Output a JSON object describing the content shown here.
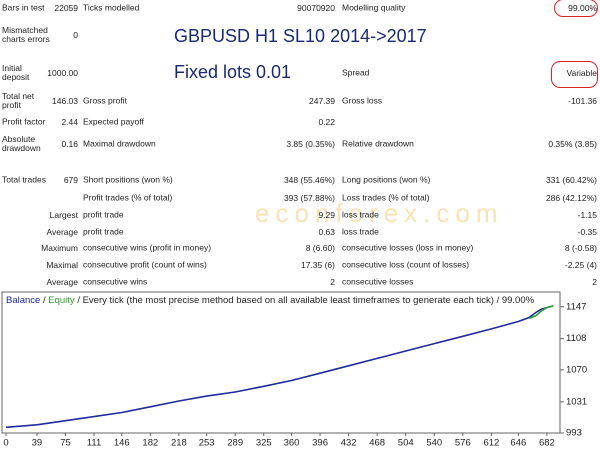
{
  "report": {
    "title": "GBPUSD H1 SL10 2014->2017",
    "subtitle": "Fixed lots 0.01",
    "watermark": "econforex.com",
    "rows": [
      [
        {
          "label": "Bars in test",
          "value": "22059"
        },
        {
          "label": "Ticks modelled",
          "value": "90070920"
        },
        {
          "label": "Modelling quality",
          "value": "99.00%"
        }
      ],
      [
        {
          "label": "Mismatched charts errors",
          "value": "0"
        },
        null,
        null
      ],
      [
        {
          "label": "Initial deposit",
          "value": "1000.00"
        },
        null,
        {
          "label": "Spread",
          "value": "Variable"
        }
      ],
      [
        {
          "label": "Total net profit",
          "value": "146.03"
        },
        {
          "label": "Gross profit",
          "value": "247.39"
        },
        {
          "label": "Gross loss",
          "value": "-101.36"
        }
      ],
      [
        {
          "label": "Profit factor",
          "value": "2.44"
        },
        {
          "label": "Expected payoff",
          "value": "0.22"
        },
        null
      ],
      [
        {
          "label": "Absolute drawdown",
          "value": "0.16"
        },
        {
          "label": "Maximal drawdown",
          "value": "3.85 (0.35%)"
        },
        {
          "label": "Relative drawdown",
          "value": "0.35% (3.85)"
        }
      ],
      [
        {
          "label": "Total trades",
          "value": "679"
        },
        {
          "label": "Short positions (won %)",
          "value": "348 (55.46%)"
        },
        {
          "label": "Long positions (won %)",
          "value": "331 (60.42%)"
        }
      ],
      [
        null,
        {
          "label": "Profit trades (% of total)",
          "value": "393 (57.88%)"
        },
        {
          "label": "Loss trades (% of total)",
          "value": "286 (42.12%)"
        }
      ],
      [
        {
          "label": "Largest"
        },
        {
          "label": "profit trade",
          "value": "9.29"
        },
        {
          "label": "loss trade",
          "value": "-1.15"
        }
      ],
      [
        {
          "label": "Average"
        },
        {
          "label": "profit trade",
          "value": "0.63"
        },
        {
          "label": "loss trade",
          "value": "-0.35"
        }
      ],
      [
        {
          "label": "Maximum"
        },
        {
          "label": "consecutive wins (profit in money)",
          "value": "8 (6.60)"
        },
        {
          "label": "consecutive losses (loss in money)",
          "value": "8 (-0.58)"
        }
      ],
      [
        {
          "label": "Maximal"
        },
        {
          "label": "consecutive profit (count of wins)",
          "value": "17.35 (6)"
        },
        {
          "label": "consecutive loss (count of losses)",
          "value": "-2.25 (4)"
        }
      ],
      [
        {
          "label": "Average"
        },
        {
          "label": "consecutive wins",
          "value": "2"
        },
        {
          "label": "consecutive losses",
          "value": "2"
        }
      ]
    ]
  },
  "chart_data": {
    "type": "line",
    "legend_separator": "/",
    "subtitle": "/ Every tick (the most precise method based on all available least timeframes to generate each tick) / 99.00%",
    "x": [
      0,
      39,
      75,
      111,
      146,
      182,
      218,
      253,
      289,
      325,
      360,
      396,
      432,
      468,
      504,
      540,
      576,
      612,
      646,
      660,
      668,
      675,
      682,
      690
    ],
    "series": [
      {
        "name": "Balance",
        "color": "#1f2a9c",
        "values": [
          1000,
          1003,
          1008,
          1013,
          1018,
          1025,
          1032,
          1038,
          1043,
          1050,
          1057,
          1066,
          1075,
          1084,
          1093,
          1102,
          1111,
          1120,
          1129,
          1134,
          1140,
          1144,
          1146,
          1148
        ]
      },
      {
        "name": "Equity",
        "color": "#2ca02c",
        "values": [
          null,
          null,
          null,
          null,
          null,
          null,
          null,
          null,
          null,
          null,
          null,
          null,
          null,
          null,
          null,
          null,
          null,
          null,
          null,
          1133,
          1136,
          1142,
          1146,
          1148
        ]
      }
    ],
    "xlim": [
      0,
      696
    ],
    "xticks": [
      0,
      39,
      75,
      111,
      146,
      182,
      218,
      253,
      289,
      325,
      360,
      396,
      432,
      468,
      504,
      540,
      576,
      612,
      646,
      682
    ],
    "ylim": [
      993,
      1165
    ],
    "yticks": [
      993,
      1031,
      1070,
      1108,
      1147
    ]
  }
}
